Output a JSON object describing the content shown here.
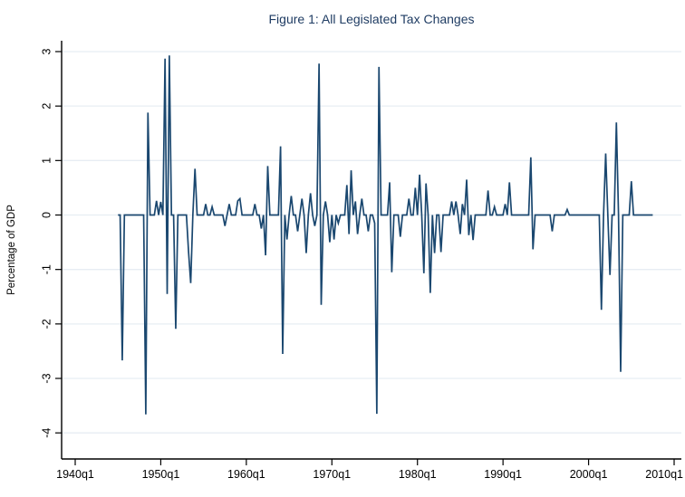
{
  "figure": {
    "title": "Figure 1: All Legislated Tax Changes"
  },
  "chart_data": {
    "type": "line",
    "title": "Figure 1: All Legislated Tax Changes",
    "xlabel": "",
    "ylabel": "Percentage of GDP",
    "x_tick_labels": [
      "1940q1",
      "1950q1",
      "1960q1",
      "1970q1",
      "1980q1",
      "1990q1",
      "2000q1",
      "2010q1"
    ],
    "y_tick_values": [
      3,
      2,
      1,
      0,
      -1,
      -2,
      -3,
      -4
    ],
    "ylim": [
      -4.45,
      3.25
    ],
    "xlim": [
      "1939q2",
      "2010q2"
    ],
    "grid": "horizontal",
    "legend": "none",
    "line_color": "#1a476f",
    "grid_color": "#e7edf3",
    "axis_color": "#000000",
    "title_color": "#1f3c63",
    "frequency": "quarterly",
    "series_name": "All legislated tax changes (% of GDP)",
    "series_start": "1945q1",
    "series_end": "2007q3",
    "baseline": 0,
    "events": {
      "1945q3": -2.67,
      "1948q2": -3.66,
      "1948q3": 1.88,
      "1949q3": 0.26,
      "1950q1": 0.24,
      "1950q3": 2.87,
      "1950q4": -1.45,
      "1951q1": 2.93,
      "1951q4": -2.09,
      "1953q2": -0.68,
      "1953q3": -1.25,
      "1954q1": 0.85,
      "1955q2": 0.2,
      "1956q1": 0.15,
      "1957q3": -0.2,
      "1958q1": 0.2,
      "1959q1": 0.26,
      "1959q2": 0.3,
      "1961q1": 0.2,
      "1961q4": -0.25,
      "1962q2": -0.74,
      "1962q3": 0.9,
      "1964q1": 1.26,
      "1964q2": -2.55,
      "1964q4": -0.45,
      "1965q2": 0.35,
      "1966q1": -0.3,
      "1966q3": 0.3,
      "1967q1": -0.7,
      "1967q3": 0.4,
      "1968q1": -0.2,
      "1968q3": 2.78,
      "1968q4": -1.65,
      "1969q2": 0.25,
      "1969q4": -0.5,
      "1970q2": -0.45,
      "1970q4": -0.15,
      "1971q4": 0.55,
      "1972q1": -0.35,
      "1972q2": 0.82,
      "1972q4": 0.25,
      "1973q1": -0.35,
      "1973q3": 0.3,
      "1974q2": -0.3,
      "1975q1": -0.15,
      "1975q2": -3.65,
      "1975q3": 2.72,
      "1976q4": 0.6,
      "1977q1": -1.05,
      "1978q1": -0.4,
      "1979q1": 0.3,
      "1979q4": 0.5,
      "1980q2": 0.74,
      "1980q4": -1.07,
      "1981q1": 0.58,
      "1981q3": -1.43,
      "1982q1": -0.7,
      "1982q4": -0.68,
      "1984q1": 0.25,
      "1984q3": 0.25,
      "1985q1": -0.35,
      "1985q2": 0.2,
      "1985q4": 0.65,
      "1986q1": -0.37,
      "1986q3": -0.46,
      "1988q2": 0.45,
      "1989q1": 0.15,
      "1990q2": 0.2,
      "1990q4": 0.6,
      "1993q2": 1.06,
      "1993q3": -0.63,
      "1995q4": -0.3,
      "1997q3": 0.1,
      "2001q3": -1.74,
      "2002q1": 1.13,
      "2002q3": -1.1,
      "2003q2": 1.7,
      "2003q4": -2.88,
      "2005q1": 0.62
    }
  }
}
